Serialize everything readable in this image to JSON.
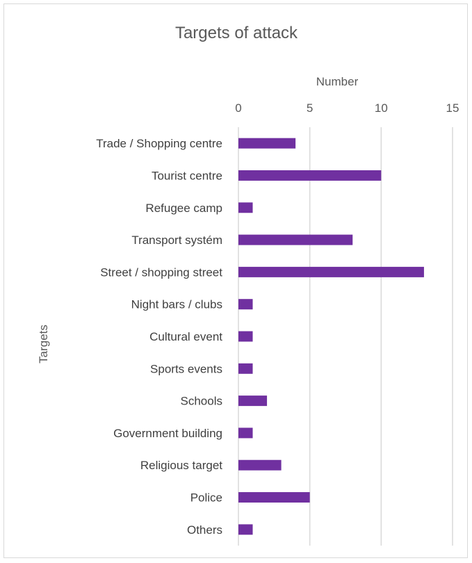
{
  "chart_data": {
    "type": "bar",
    "orientation": "horizontal",
    "title": "Targets of attack",
    "xlabel": "Number",
    "ylabel": "Targets",
    "xlim": [
      0,
      15
    ],
    "x_ticks": [
      "0",
      "5",
      "10",
      "15"
    ],
    "x_axis_position": "top",
    "grid": true,
    "legend": "none",
    "bar_color": "#7030a0",
    "categories": [
      "Trade / Shopping centre",
      "Tourist centre",
      "Refugee camp",
      "Transport systém",
      "Street / shopping street",
      "Night bars / clubs",
      "Cultural event",
      "Sports events",
      "Schools",
      "Government building",
      "Religious target",
      "Police",
      "Others"
    ],
    "values": [
      4,
      10,
      1,
      8,
      13,
      1,
      1,
      1,
      2,
      1,
      3,
      5,
      1
    ]
  }
}
